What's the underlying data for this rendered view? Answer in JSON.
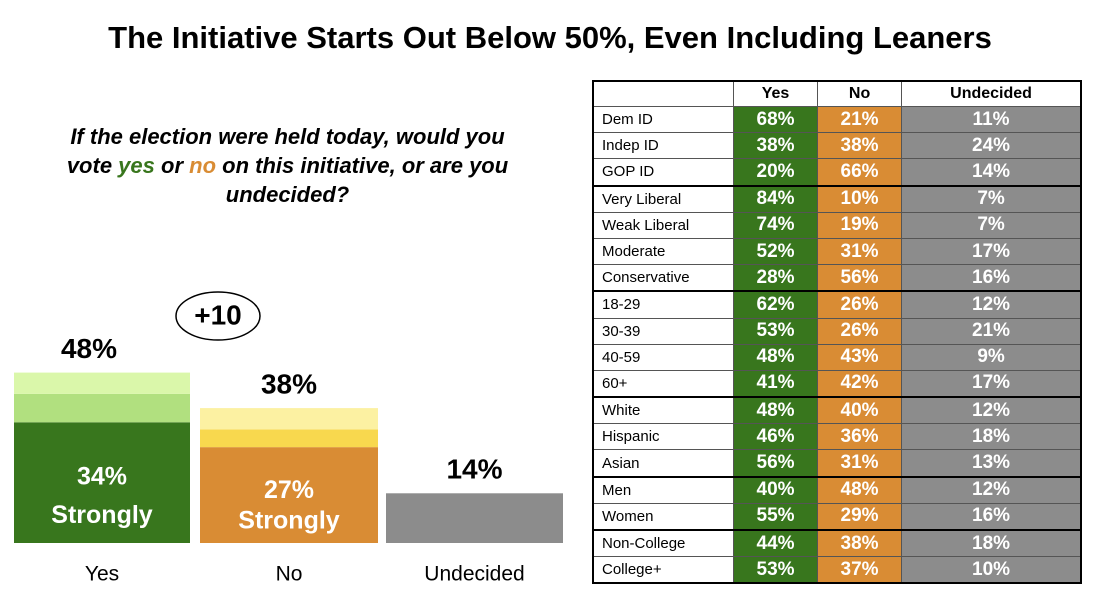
{
  "chart_data": {
    "type": "stacked-bar",
    "title": "The Initiative Starts Out Below 50%, Even Including Leaners",
    "question": [
      "If the election were held today, would you vote ",
      "yes",
      " or ",
      "no",
      " on this initiative, or are you undecided?"
    ],
    "question_colors": [
      "#000000",
      "#38761d",
      "#000000",
      "#d98c34",
      "#000000"
    ],
    "annotation": "+10",
    "categories": [
      "Yes",
      "No",
      "Undecided"
    ],
    "totals": [
      48,
      38,
      14
    ],
    "total_labels": [
      "48%",
      "38%",
      "14%"
    ],
    "series": [
      {
        "name": "Strongly",
        "colors": [
          "#38761d",
          "#d98c34",
          null
        ],
        "values": [
          34,
          27,
          null
        ],
        "value_labels": [
          "34%",
          "27%",
          null
        ]
      },
      {
        "colors": [
          "#b1e07f",
          "#f8d84e",
          null
        ],
        "values": [
          8,
          5,
          null
        ]
      },
      {
        "colors": [
          "#daf7aa",
          "#fcf1a2",
          null
        ],
        "values": [
          6,
          6,
          null
        ]
      },
      {
        "colors": [
          null,
          null,
          "#8c8c8c"
        ],
        "values": [
          null,
          null,
          14
        ]
      }
    ]
  },
  "table": {
    "columns": [
      "Yes",
      "No",
      "Undecided"
    ],
    "column_colors": [
      "#38761d",
      "#d98c34",
      "#8c8c8c"
    ],
    "groups": [
      [
        {
          "label": "Dem ID",
          "values": [
            "68%",
            "21%",
            "11%"
          ]
        },
        {
          "label": "Indep ID",
          "values": [
            "38%",
            "38%",
            "24%"
          ]
        },
        {
          "label": "GOP ID",
          "values": [
            "20%",
            "66%",
            "14%"
          ]
        }
      ],
      [
        {
          "label": "Very Liberal",
          "values": [
            "84%",
            "10%",
            "7%"
          ]
        },
        {
          "label": "Weak Liberal",
          "values": [
            "74%",
            "19%",
            "7%"
          ]
        },
        {
          "label": "Moderate",
          "values": [
            "52%",
            "31%",
            "17%"
          ]
        },
        {
          "label": "Conservative",
          "values": [
            "28%",
            "56%",
            "16%"
          ]
        }
      ],
      [
        {
          "label": "18-29",
          "values": [
            "62%",
            "26%",
            "12%"
          ]
        },
        {
          "label": "30-39",
          "values": [
            "53%",
            "26%",
            "21%"
          ]
        },
        {
          "label": "40-59",
          "values": [
            "48%",
            "43%",
            "9%"
          ]
        },
        {
          "label": "60+",
          "values": [
            "41%",
            "42%",
            "17%"
          ]
        }
      ],
      [
        {
          "label": "White",
          "values": [
            "48%",
            "40%",
            "12%"
          ]
        },
        {
          "label": "Hispanic",
          "values": [
            "46%",
            "36%",
            "18%"
          ]
        },
        {
          "label": "Asian",
          "values": [
            "56%",
            "31%",
            "13%"
          ]
        }
      ],
      [
        {
          "label": "Men",
          "values": [
            "40%",
            "48%",
            "12%"
          ]
        },
        {
          "label": "Women",
          "values": [
            "55%",
            "29%",
            "16%"
          ]
        }
      ],
      [
        {
          "label": "Non-College",
          "values": [
            "44%",
            "38%",
            "18%"
          ]
        },
        {
          "label": "College+",
          "values": [
            "53%",
            "37%",
            "10%"
          ]
        }
      ]
    ]
  }
}
